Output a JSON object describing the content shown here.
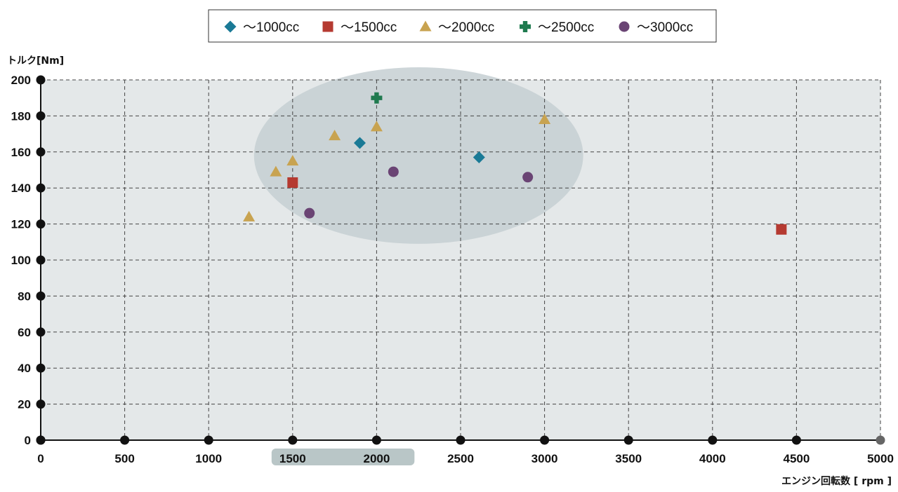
{
  "chart_data": {
    "type": "scatter",
    "title": "",
    "xlabel": "エンジン回転数 [ rpm ]",
    "ylabel": "トルク[Nm]",
    "xlim": [
      0,
      5000
    ],
    "ylim": [
      0,
      200
    ],
    "xticks": [
      0,
      500,
      1000,
      1500,
      2000,
      2500,
      3000,
      3500,
      4000,
      4500,
      5000
    ],
    "yticks": [
      0,
      20,
      40,
      60,
      80,
      100,
      120,
      140,
      160,
      180,
      200
    ],
    "grid": true,
    "legend_position": "top-center",
    "highlight_region": {
      "center": [
        2250,
        158
      ],
      "radius": [
        980,
        49
      ],
      "color": "#c5cfd2"
    },
    "highlight_band": {
      "range": [
        1500,
        2100
      ],
      "color": "#b9c6c7"
    },
    "series": [
      {
        "name": "～1000cc",
        "marker": "diamond",
        "color": "#1a7a96",
        "points": [
          [
            1900,
            165
          ],
          [
            2610,
            157
          ]
        ]
      },
      {
        "name": "～1500cc",
        "marker": "square",
        "color": "#b53a31",
        "points": [
          [
            1500,
            143
          ],
          [
            4410,
            117
          ]
        ]
      },
      {
        "name": "～2000cc",
        "marker": "triangle",
        "color": "#c8a350",
        "points": [
          [
            1240,
            124
          ],
          [
            1400,
            149
          ],
          [
            1500,
            155
          ],
          [
            1750,
            169
          ],
          [
            2000,
            174
          ],
          [
            3000,
            178
          ]
        ]
      },
      {
        "name": "～2500cc",
        "marker": "cross",
        "color": "#1f7a4f",
        "points": [
          [
            2000,
            190
          ]
        ]
      },
      {
        "name": "～3000cc",
        "marker": "circle",
        "color": "#6a4474",
        "points": [
          [
            1600,
            126
          ],
          [
            2100,
            149
          ],
          [
            2900,
            146
          ]
        ]
      }
    ]
  }
}
